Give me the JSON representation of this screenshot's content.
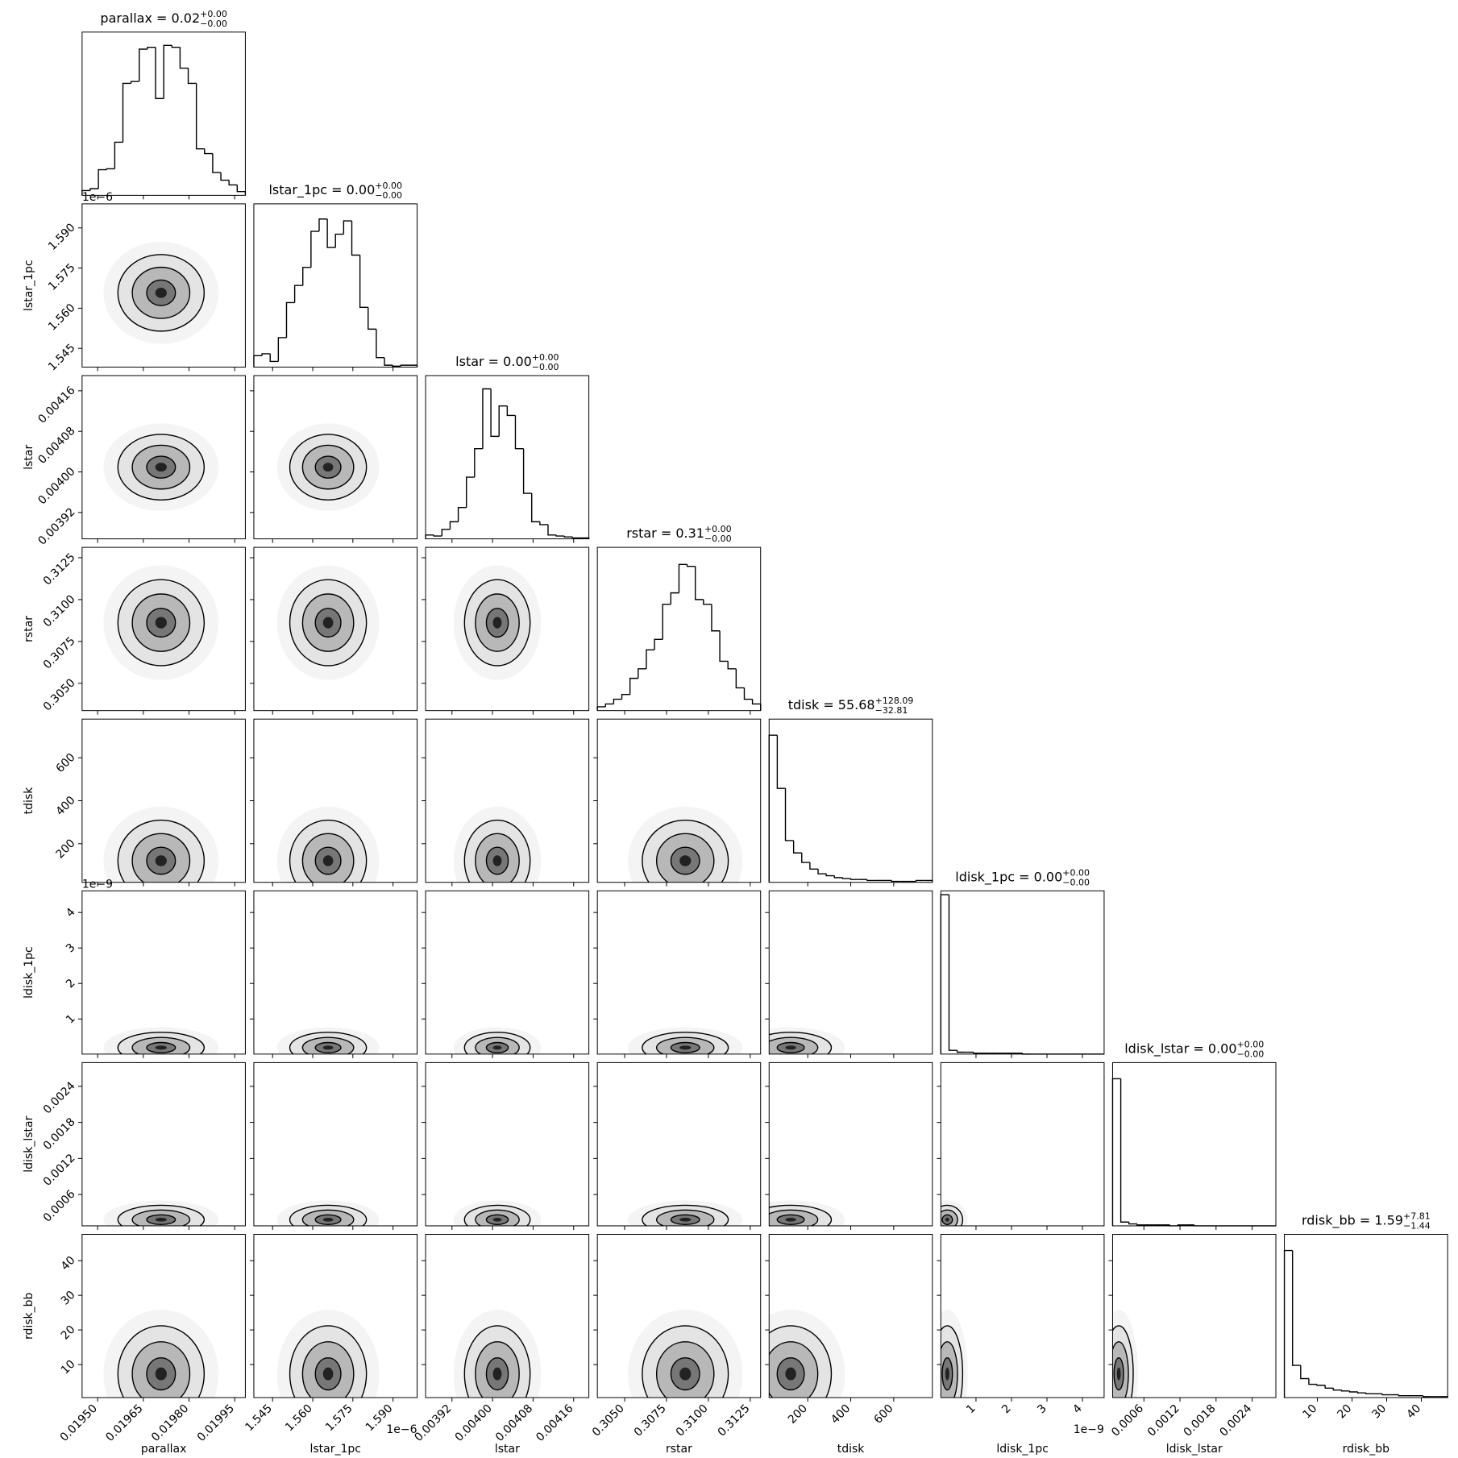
{
  "chart_data": {
    "type": "corner",
    "color": "#000000",
    "hist_ylim": [
      0,
      172
    ],
    "variables": [
      {
        "name": "parallax",
        "title": "parallax = 0.02",
        "title_upper": "+0.00",
        "title_lower": "−0.00",
        "lim": [
          0.019449,
          0.019985
        ],
        "ticks": [
          {
            "value": 0.0195,
            "label": "0.01950"
          },
          0.01965,
          {
            "value": 0.0198,
            "label": "0.01980"
          },
          0.01995
        ],
        "counts": [
          5,
          7,
          27,
          28,
          56,
          118,
          120,
          154,
          156,
          102,
          158,
          156,
          134,
          118,
          49,
          44,
          24,
          16,
          11,
          4
        ]
      },
      {
        "name": "lstar_1pc",
        "title": "lstar_1pc = 0.00",
        "title_upper": "+0.00",
        "title_lower": "−0.00",
        "offset": "1e−6",
        "lim": [
          1.538,
          1.599
        ],
        "ticks": [
          1.545,
          {
            "value": 1.56,
            "label": "1.560"
          },
          1.575,
          {
            "value": 1.59,
            "label": "1.590"
          }
        ],
        "counts": [
          12,
          14,
          6,
          31,
          68,
          86,
          105,
          143,
          156,
          126,
          140,
          154,
          118,
          63,
          40,
          10,
          2,
          1,
          2,
          2
        ]
      },
      {
        "name": "lstar",
        "title": "lstar = 0.00",
        "title_upper": "+0.00",
        "title_lower": "−0.00",
        "lim": [
          0.003868,
          0.00419
        ],
        "ticks": [
          0.00392,
          {
            "value": 0.004,
            "label": "0.00400"
          },
          0.00408,
          0.00416
        ],
        "counts": [
          4,
          3,
          10,
          18,
          33,
          65,
          95,
          158,
          108,
          140,
          130,
          95,
          48,
          18,
          15,
          4,
          3,
          2,
          1,
          1
        ]
      },
      {
        "name": "rstar",
        "title": "rstar = 0.31",
        "title_upper": "+0.00",
        "title_lower": "−0.00",
        "lim": [
          0.30337,
          0.31312
        ],
        "ticks": [
          {
            "value": 0.305,
            "label": "0.3050"
          },
          0.3075,
          {
            "value": 0.31,
            "label": "0.3100"
          },
          0.3125
        ],
        "counts": [
          4,
          7,
          12,
          17,
          34,
          44,
          64,
          75,
          112,
          124,
          154,
          152,
          117,
          112,
          84,
          52,
          44,
          24,
          12,
          7
        ]
      },
      {
        "name": "tdisk",
        "title": "tdisk = 55.68",
        "title_upper": "+128.09",
        "title_lower": "−32.81",
        "lim": [
          20,
          780
        ],
        "ticks": [
          200,
          400,
          600
        ],
        "counts": [
          155,
          99,
          44,
          31,
          21,
          14,
          9,
          7,
          5,
          4,
          3,
          3,
          2,
          2,
          2,
          1,
          1,
          1,
          2,
          2
        ]
      },
      {
        "name": "ldisk_1pc",
        "title": "ldisk_1pc = 0.00",
        "title_upper": "+0.00",
        "title_lower": "−0.00",
        "offset": "1e−9",
        "lim": [
          0.01,
          4.61
        ],
        "ticks": [
          1,
          2,
          3,
          4
        ],
        "counts": [
          168,
          4,
          2,
          2,
          1,
          1,
          1,
          1,
          1,
          1,
          0,
          0,
          0,
          0,
          0,
          0,
          0,
          0,
          0,
          0
        ]
      },
      {
        "name": "ldisk_lstar",
        "title": "ldisk_lstar = 0.00",
        "title_upper": "+0.00",
        "title_lower": "−0.00",
        "lim": [
          7.9e-05,
          0.002795
        ],
        "ticks": [
          0.0006,
          0.0012,
          0.0018,
          0.0024
        ],
        "counts": [
          155,
          4,
          2,
          1,
          1,
          1,
          1,
          0,
          1,
          1,
          0,
          0,
          0,
          0,
          0,
          0,
          0,
          0,
          0,
          0
        ]
      },
      {
        "name": "rdisk_bb",
        "title": "rdisk_bb = 1.59",
        "title_upper": "+7.81",
        "title_lower": "−1.44",
        "lim": [
          0.46,
          47.6
        ],
        "ticks": [
          10,
          20,
          30,
          40
        ],
        "counts": [
          155,
          34,
          20,
          14,
          13,
          10,
          8,
          7,
          6,
          5,
          4,
          4,
          3,
          3,
          2,
          2,
          2,
          1,
          1,
          1
        ]
      }
    ]
  }
}
